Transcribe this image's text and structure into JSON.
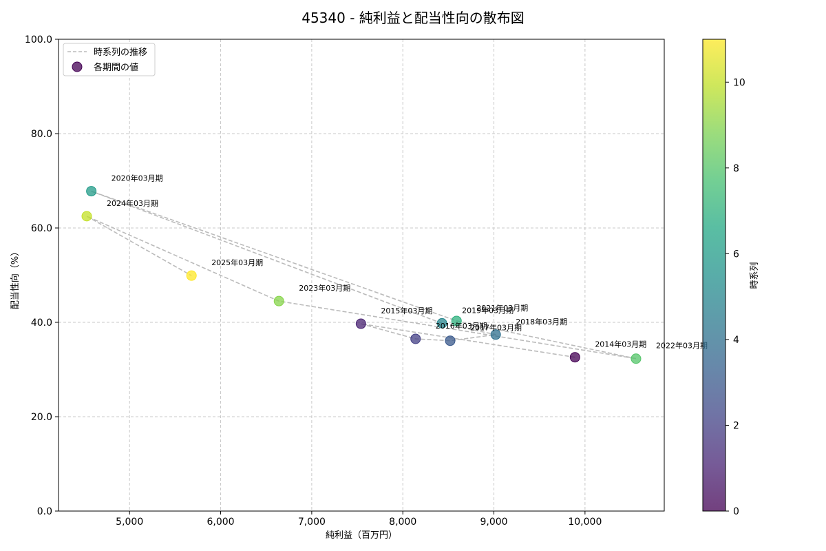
{
  "chart_data": {
    "type": "scatter",
    "title": "45340 - 純利益と配当性向の散布図",
    "xlabel": "純利益（百万円）",
    "ylabel": "配当性向（%）",
    "xlim": [
      4220,
      10870
    ],
    "ylim": [
      0,
      100
    ],
    "xticks": [
      "5,000",
      "6,000",
      "7,000",
      "8,000",
      "9,000",
      "10,000"
    ],
    "xtick_values": [
      5000,
      6000,
      7000,
      8000,
      9000,
      10000
    ],
    "yticks": [
      "0.0",
      "20.0",
      "40.0",
      "60.0",
      "80.0",
      "100.0"
    ],
    "ytick_values": [
      0,
      20,
      40,
      60,
      80,
      100
    ],
    "grid": true,
    "legend_position": "top-left",
    "legend": [
      "時系列の推移",
      "各期間の値"
    ],
    "colorbar": {
      "label": "時系列",
      "range": [
        0,
        11
      ],
      "ticks": [
        "0",
        "2",
        "4",
        "6",
        "8",
        "10"
      ],
      "tick_values": [
        0,
        2,
        4,
        6,
        8,
        10
      ],
      "colormap": "viridis"
    },
    "points": [
      {
        "label": "2014年03月期",
        "x": 9890,
        "y": 32.6,
        "t": 0
      },
      {
        "label": "2015年03月期",
        "x": 7540,
        "y": 39.7,
        "t": 1
      },
      {
        "label": "2016年03月期",
        "x": 8140,
        "y": 36.5,
        "t": 2
      },
      {
        "label": "2017年03月期",
        "x": 8520,
        "y": 36.1,
        "t": 3
      },
      {
        "label": "2018年03月期",
        "x": 9020,
        "y": 37.4,
        "t": 4
      },
      {
        "label": "2019年03月期",
        "x": 8430,
        "y": 39.8,
        "t": 5
      },
      {
        "label": "2020年03月期",
        "x": 4580,
        "y": 67.8,
        "t": 6
      },
      {
        "label": "2021年03月期",
        "x": 8590,
        "y": 40.3,
        "t": 7
      },
      {
        "label": "2022年03月期",
        "x": 10560,
        "y": 32.3,
        "t": 8
      },
      {
        "label": "2023年03月期",
        "x": 6640,
        "y": 44.5,
        "t": 9
      },
      {
        "label": "2024年03月期",
        "x": 4530,
        "y": 62.5,
        "t": 10
      },
      {
        "label": "2025年03月期",
        "x": 5680,
        "y": 49.9,
        "t": 11
      }
    ]
  }
}
